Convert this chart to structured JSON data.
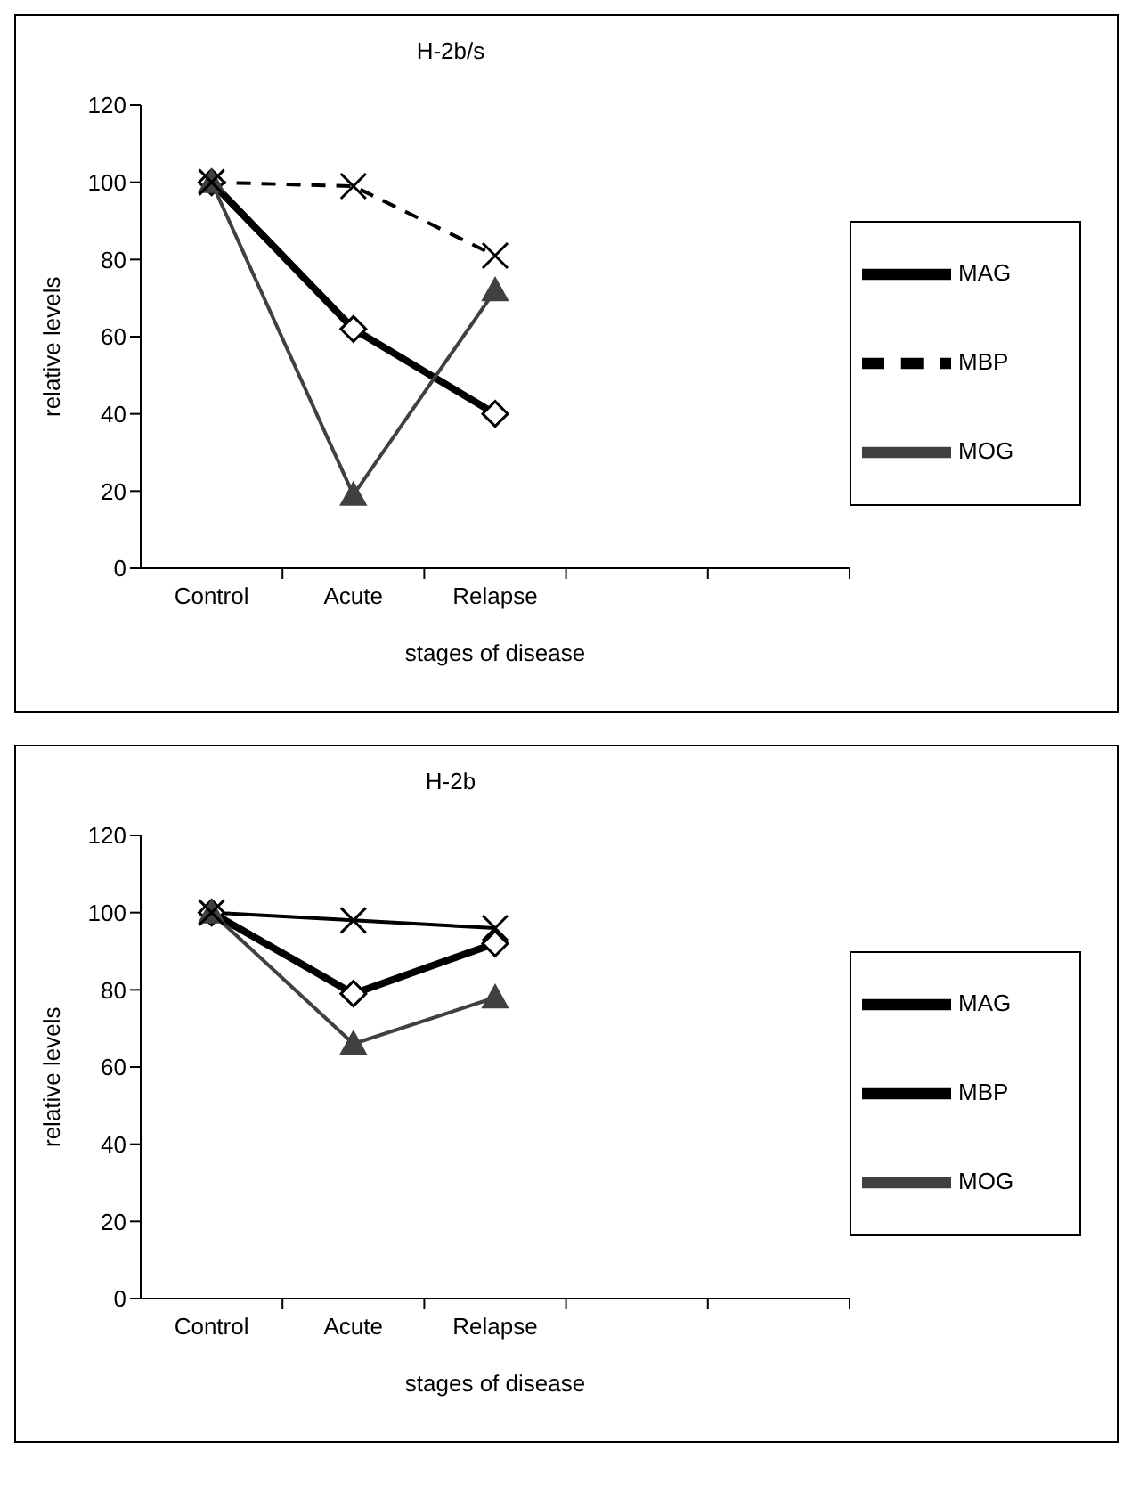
{
  "chart_data": [
    {
      "type": "line",
      "title": "H-2b/s",
      "xlabel": "stages of disease",
      "ylabel": "relative levels",
      "categories": [
        "Control",
        "Acute",
        "Relapse",
        null,
        null
      ],
      "ylim": [
        0,
        120
      ],
      "yticks": [
        0,
        20,
        40,
        60,
        80,
        100,
        120
      ],
      "grid": false,
      "legend": "right",
      "series": [
        {
          "name": "MAG",
          "color": "#000000",
          "values": [
            100,
            62,
            40,
            null,
            null
          ],
          "marker": "diamond",
          "line_style": "solid"
        },
        {
          "name": "MOG",
          "color": "#404040",
          "values": [
            100,
            19,
            72,
            null,
            null
          ],
          "marker": "triangle",
          "line_style": "solid"
        },
        {
          "name": "MBP",
          "color": "#000000",
          "values": [
            100,
            99,
            81,
            null,
            null
          ],
          "marker": "cross",
          "line_style": "dashed"
        }
      ]
    },
    {
      "type": "line",
      "title": "H-2b",
      "xlabel": "stages of disease",
      "ylabel": "relative levels",
      "categories": [
        "Control",
        "Acute",
        "Relapse",
        null,
        null
      ],
      "ylim": [
        0,
        120
      ],
      "yticks": [
        0,
        20,
        40,
        60,
        80,
        100,
        120
      ],
      "grid": false,
      "legend": "right",
      "series": [
        {
          "name": "MAG",
          "color": "#000000",
          "values": [
            100,
            79,
            92,
            null,
            null
          ],
          "marker": "diamond",
          "line_style": "solid"
        },
        {
          "name": "MOG",
          "color": "#404040",
          "values": [
            100,
            66,
            78,
            null,
            null
          ],
          "marker": "triangle",
          "line_style": "solid"
        },
        {
          "name": "MBP",
          "color": "#000000",
          "values": [
            100,
            98,
            96,
            null,
            null
          ],
          "marker": "cross",
          "line_style": "solid"
        }
      ]
    }
  ]
}
